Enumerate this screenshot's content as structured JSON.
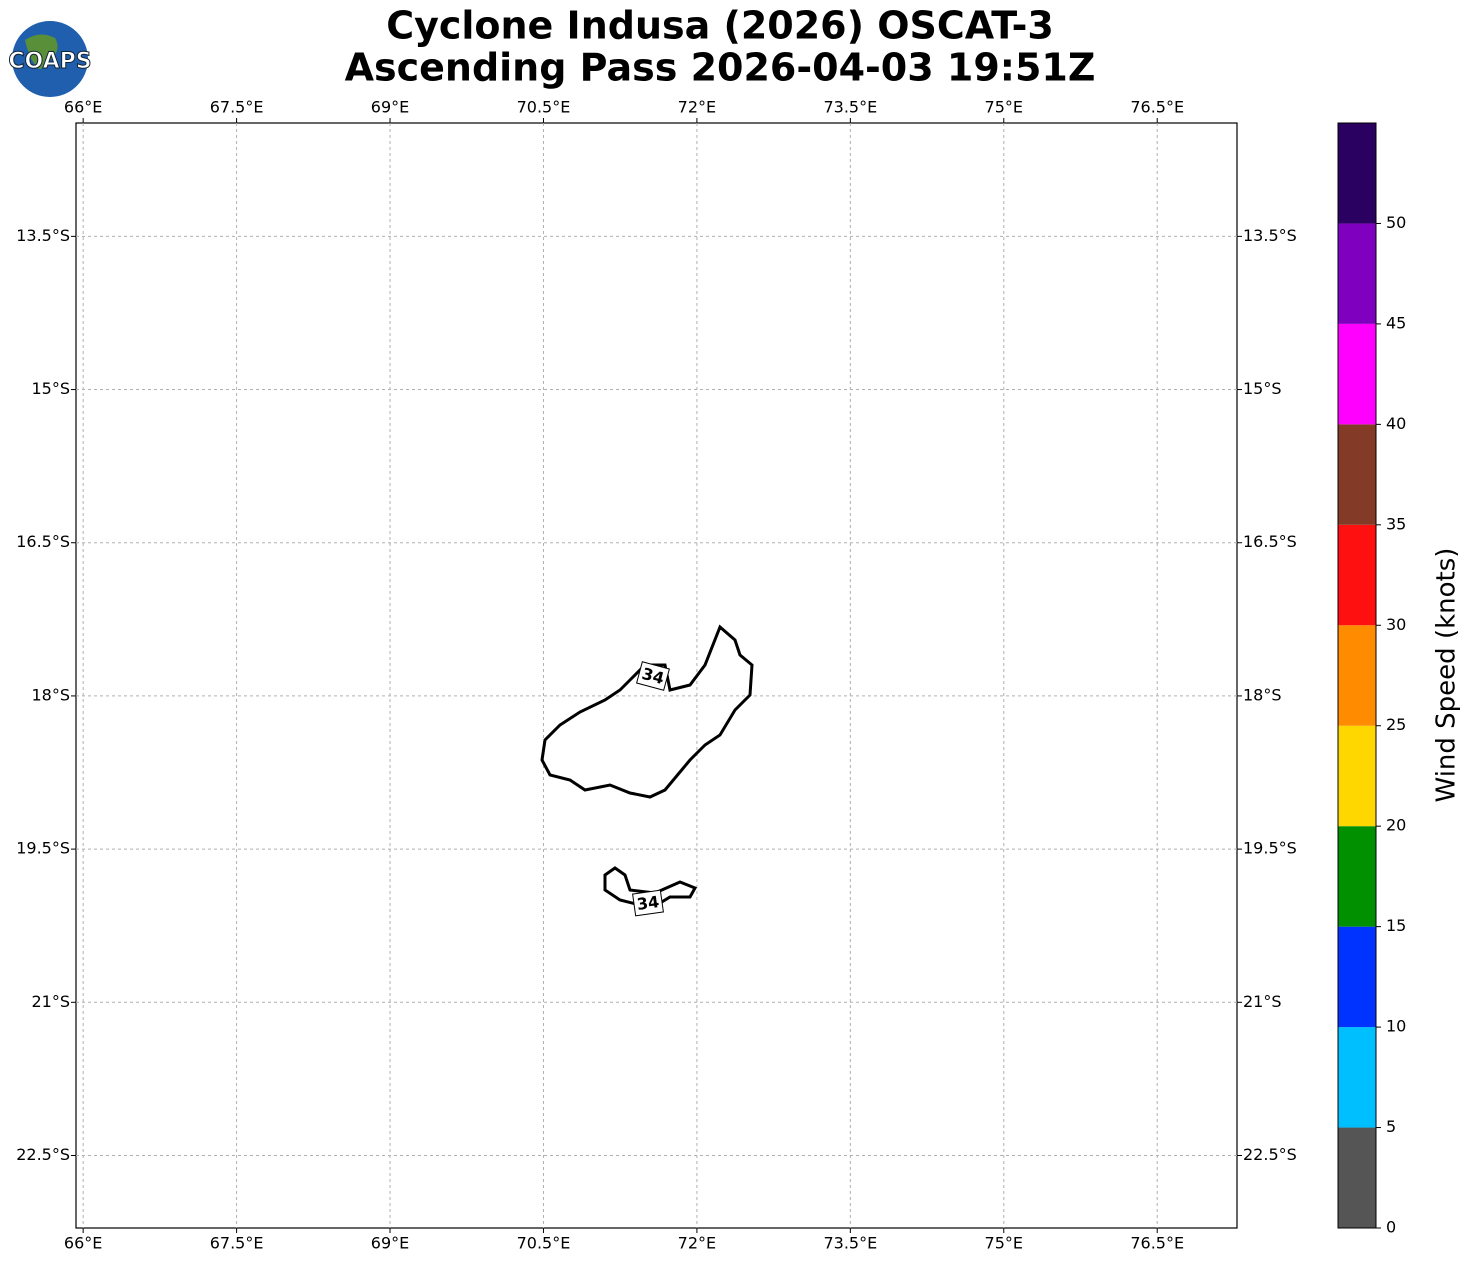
{
  "chart_data": {
    "type": "barb-map",
    "title": "Cyclone Indusa (2026) OSCAT-3",
    "subtitle": "Ascending Pass 2026-04-03 19:51Z",
    "logo_text": "COAPS",
    "xlim": [
      65.93,
      77.28
    ],
    "ylim": [
      -23.21,
      -12.39
    ],
    "xticks": [
      {
        "value": 66,
        "label": "66°E"
      },
      {
        "value": 67.5,
        "label": "67.5°E"
      },
      {
        "value": 69,
        "label": "69°E"
      },
      {
        "value": 70.5,
        "label": "70.5°E"
      },
      {
        "value": 72,
        "label": "72°E"
      },
      {
        "value": 73.5,
        "label": "73.5°E"
      },
      {
        "value": 75,
        "label": "75°E"
      },
      {
        "value": 76.5,
        "label": "76.5°E"
      }
    ],
    "yticks": [
      {
        "value": -13.5,
        "label": "13.5°S"
      },
      {
        "value": -15,
        "label": "15°S"
      },
      {
        "value": -16.5,
        "label": "16.5°S"
      },
      {
        "value": -18,
        "label": "18°S"
      },
      {
        "value": -19.5,
        "label": "19.5°S"
      },
      {
        "value": -21,
        "label": "21°S"
      },
      {
        "value": -22.5,
        "label": "22.5°S"
      }
    ],
    "grid": true,
    "contour_level": 34,
    "colorbar": {
      "label": "Wind Speed (knots)",
      "lim": [
        0,
        55
      ],
      "bins": [
        0,
        5,
        10,
        15,
        20,
        25,
        30,
        35,
        40,
        45,
        50,
        55
      ],
      "colors": [
        "#555555",
        "#00bfff",
        "#0033ff",
        "#009000",
        "#ffd700",
        "#ff8c00",
        "#ff1010",
        "#833b28",
        "#ff00ff",
        "#8000c0",
        "#2a0060"
      ],
      "ticks": [
        0,
        5,
        10,
        15,
        20,
        25,
        30,
        35,
        40,
        45,
        50
      ]
    }
  }
}
